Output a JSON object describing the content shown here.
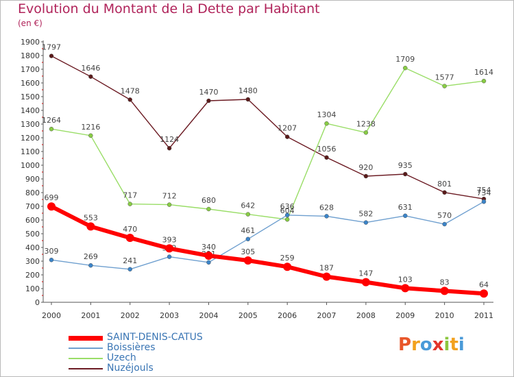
{
  "title": "Evolution du Montant de la Dette par Habitant",
  "unit": "(en €)",
  "logo": {
    "text": "Proxiti",
    "letter_colors": [
      "#e8562a",
      "#f2a11e",
      "#4a9ad8",
      "#e2352c",
      "#8cc63f",
      "#f2a11e",
      "#4a9ad8"
    ]
  },
  "chart_data": {
    "type": "line",
    "x": [
      "2000",
      "2001",
      "2002",
      "2003",
      "2004",
      "2005",
      "2006",
      "2007",
      "2008",
      "2009",
      "2010",
      "2011"
    ],
    "ylim": [
      0,
      1900
    ],
    "yticks": [
      0,
      100,
      200,
      300,
      400,
      500,
      600,
      700,
      800,
      900,
      1000,
      1100,
      1200,
      1300,
      1400,
      1500,
      1600,
      1700,
      1800,
      1900
    ],
    "grid": false,
    "legend": "bottom-left",
    "series": [
      {
        "name": "Nuzéjouls",
        "color": "#6b1a22",
        "marker": "#5a1a1a",
        "values": [
          1797,
          1646,
          1478,
          1124,
          1470,
          1480,
          1207,
          1056,
          920,
          935,
          801,
          754
        ]
      },
      {
        "name": "Uzech",
        "color": "#99dd66",
        "marker": "#88cc44",
        "values": [
          1264,
          1216,
          717,
          712,
          680,
          642,
          604,
          1304,
          1238,
          1709,
          1577,
          1614
        ]
      },
      {
        "name": "Boissières",
        "color": "#6e9fcf",
        "marker": "#3b84c9",
        "values": [
          309,
          269,
          241,
          332,
          291,
          461,
          636,
          628,
          582,
          631,
          570,
          734
        ]
      },
      {
        "name": "SAINT-DENIS-CATUS",
        "color": "#ff0000",
        "marker": "#ff0000",
        "values": [
          699,
          553,
          470,
          393,
          340,
          305,
          259,
          187,
          147,
          103,
          83,
          64
        ]
      }
    ]
  }
}
